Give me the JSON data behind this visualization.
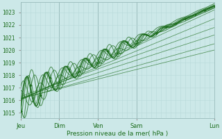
{
  "xlabel": "Pression niveau de la mer( hPa )",
  "bg_color": "#cce8e8",
  "grid_color_minor": "#b8d8d8",
  "grid_color_major": "#99bbbb",
  "line_color": "#1a6b1a",
  "ylim": [
    1014.6,
    1023.8
  ],
  "xlim": [
    0,
    240
  ],
  "day_labels": [
    "Jeu",
    "Dim",
    "Ven",
    "Sam",
    "Lun"
  ],
  "day_positions": [
    0,
    48,
    96,
    144,
    240
  ],
  "yticks": [
    1015,
    1016,
    1017,
    1018,
    1019,
    1020,
    1021,
    1022,
    1023
  ]
}
